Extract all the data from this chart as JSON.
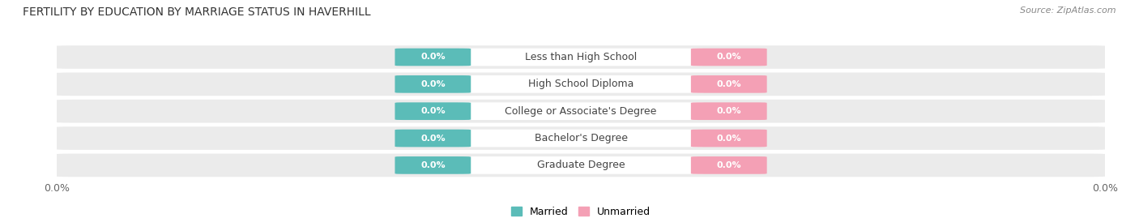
{
  "title": "FERTILITY BY EDUCATION BY MARRIAGE STATUS IN HAVERHILL",
  "source": "Source: ZipAtlas.com",
  "categories": [
    "Less than High School",
    "High School Diploma",
    "College or Associate's Degree",
    "Bachelor's Degree",
    "Graduate Degree"
  ],
  "married_values": [
    0.0,
    0.0,
    0.0,
    0.0,
    0.0
  ],
  "unmarried_values": [
    0.0,
    0.0,
    0.0,
    0.0,
    0.0
  ],
  "married_color": "#5bbcb8",
  "unmarried_color": "#f4a0b5",
  "label_color": "#ffffff",
  "title_fontsize": 10,
  "source_fontsize": 8,
  "tick_label_fontsize": 9,
  "bar_label_fontsize": 8,
  "category_fontsize": 9,
  "bar_height": 0.62,
  "legend_married": "Married",
  "legend_unmarried": "Unmarried",
  "fig_bg_color": "#ffffff",
  "row_bg_color": "#ebebeb",
  "center_label_bg": "#ffffff",
  "category_text_color": "#444444"
}
